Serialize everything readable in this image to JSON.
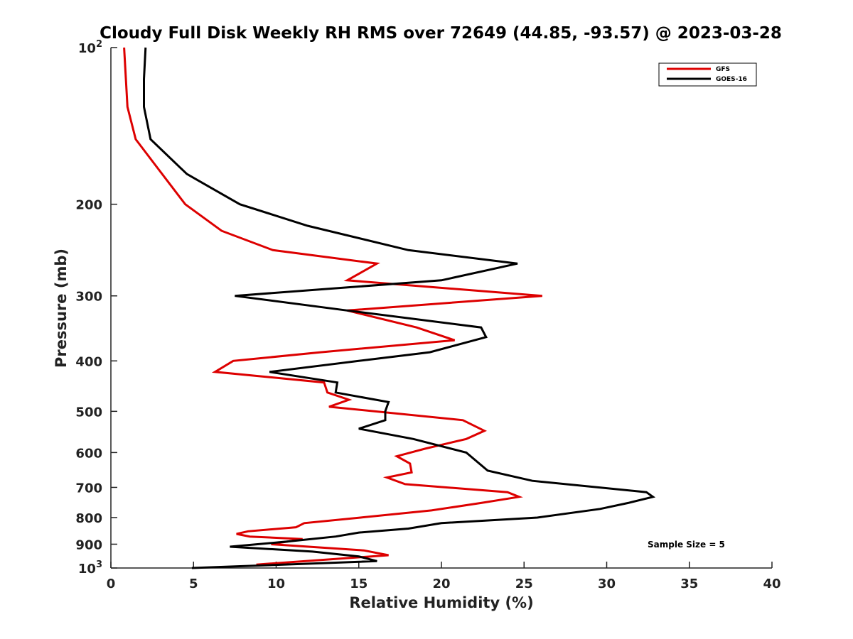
{
  "chart_data": {
    "type": "line",
    "title": "Cloudy Full Disk Weekly RH RMS over 72649 (44.85, -93.57) @ 2023-03-28",
    "xlabel": "Relative Humidity (%)",
    "ylabel": "Pressure (mb)",
    "xlim": [
      0,
      40
    ],
    "ylim": [
      100,
      1000
    ],
    "y_scale": "log",
    "y_reversed": true,
    "x_ticks": [
      "0",
      "5",
      "10",
      "15",
      "20",
      "25",
      "30",
      "35",
      "40"
    ],
    "y_ticks": [
      {
        "value": 100,
        "label": "10",
        "sup": "2"
      },
      {
        "value": 200,
        "label": "200",
        "sup": ""
      },
      {
        "value": 300,
        "label": "300",
        "sup": ""
      },
      {
        "value": 400,
        "label": "400",
        "sup": ""
      },
      {
        "value": 500,
        "label": "500",
        "sup": ""
      },
      {
        "value": 600,
        "label": "600",
        "sup": ""
      },
      {
        "value": 700,
        "label": "700",
        "sup": ""
      },
      {
        "value": 800,
        "label": "800",
        "sup": ""
      },
      {
        "value": 900,
        "label": "900",
        "sup": ""
      },
      {
        "value": 1000,
        "label": "10",
        "sup": "3"
      }
    ],
    "legend_position": "top-right",
    "grid": false,
    "annotation": "Sample Size = 5",
    "series": [
      {
        "name": "GFS",
        "color": "#dd0000",
        "x": [
          0.8,
          1.0,
          1.5,
          2.8,
          4.5,
          6.7,
          9.8,
          16.1,
          14.3,
          26.1,
          14.3,
          18.5,
          20.8,
          12.7,
          7.4,
          6.3,
          12.9,
          13.1,
          14.4,
          13.2,
          21.3,
          22.6,
          21.5,
          19.0,
          17.3,
          18.1,
          18.2,
          16.7,
          17.8,
          24.0,
          24.7,
          22.4,
          19.4,
          15.1,
          11.7,
          11.2,
          8.3,
          7.6,
          8.4,
          11.6,
          9.7,
          15.3,
          16.8,
          8.8
        ],
        "y": [
          100,
          130,
          150,
          170,
          200,
          225,
          245,
          260,
          280,
          300,
          320,
          345,
          365,
          385,
          400,
          420,
          440,
          460,
          475,
          490,
          520,
          545,
          565,
          590,
          610,
          630,
          655,
          670,
          690,
          715,
          730,
          750,
          775,
          800,
          820,
          835,
          850,
          860,
          870,
          880,
          900,
          925,
          945,
          985
        ]
      },
      {
        "name": "GOES-16",
        "color": "#000000",
        "x": [
          2.1,
          2.0,
          2.0,
          2.4,
          4.6,
          7.8,
          11.9,
          18.0,
          24.6,
          20.0,
          7.5,
          14.3,
          22.4,
          22.7,
          19.3,
          15.0,
          9.6,
          13.7,
          13.6,
          16.8,
          16.6,
          16.6,
          15.0,
          18.3,
          21.5,
          22.8,
          25.5,
          32.4,
          32.8,
          31.3,
          29.6,
          25.8,
          20.0,
          18.0,
          15.0,
          13.6,
          10.6,
          7.2,
          12.2,
          15.0,
          16.1,
          4.9
        ],
        "y": [
          100,
          115,
          130,
          150,
          175,
          200,
          220,
          245,
          260,
          280,
          300,
          320,
          345,
          360,
          385,
          400,
          420,
          440,
          460,
          480,
          500,
          520,
          540,
          565,
          600,
          650,
          680,
          715,
          730,
          750,
          770,
          800,
          820,
          840,
          855,
          870,
          890,
          910,
          930,
          950,
          970,
          1000
        ]
      }
    ]
  }
}
